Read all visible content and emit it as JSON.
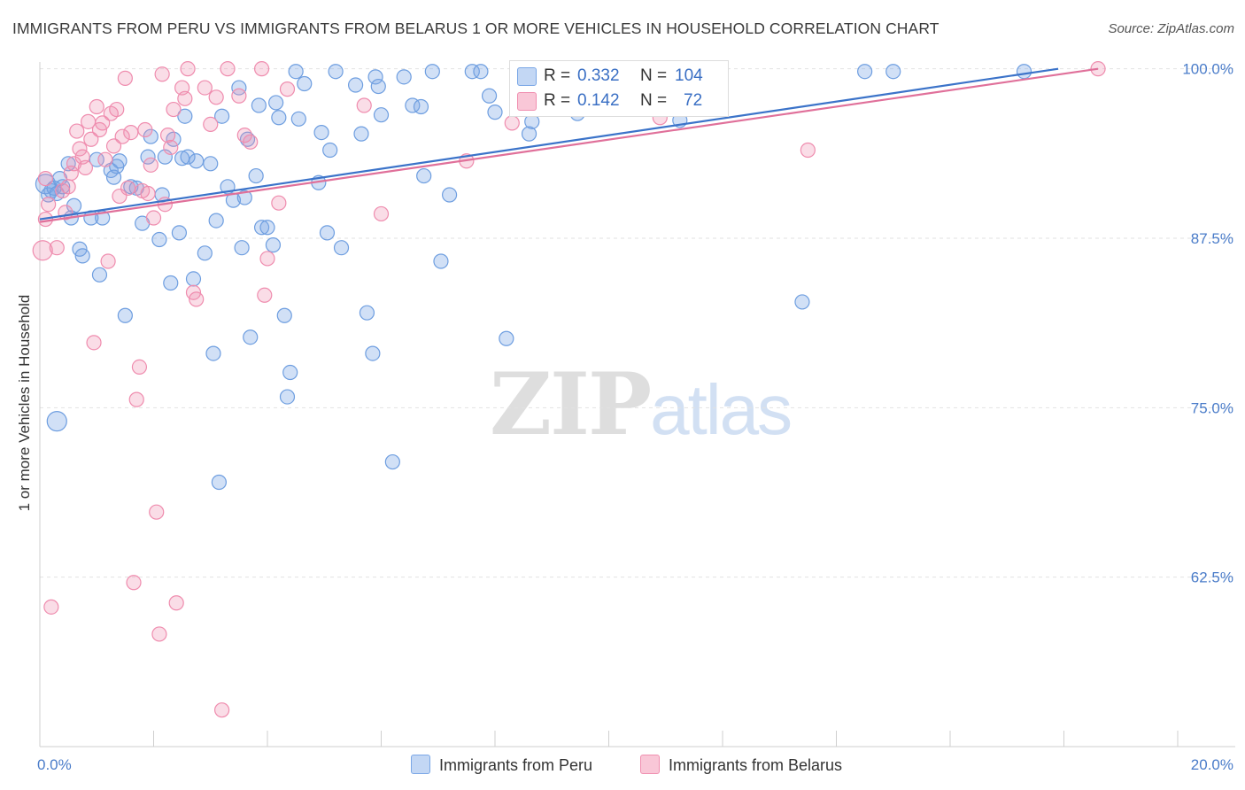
{
  "header": {
    "title": "IMMIGRANTS FROM PERU VS IMMIGRANTS FROM BELARUS 1 OR MORE VEHICLES IN HOUSEHOLD CORRELATION CHART",
    "source": "Source: ZipAtlas.com"
  },
  "watermark": {
    "zip": "ZIP",
    "atlas": "atlas"
  },
  "legend": {
    "peru": {
      "r_label": "R =",
      "r_value": "0.332",
      "n_label": "N =",
      "n_value": "104",
      "color": "#7aa7e6"
    },
    "belarus": {
      "r_label": "R =",
      "r_value": "0.142",
      "n_label": "N =",
      "n_value": "72",
      "color": "#f08fb0"
    }
  },
  "bottom_legend": {
    "peru": "Immigrants from Peru",
    "belarus": "Immigrants from Belarus"
  },
  "chart_data": {
    "type": "scatter",
    "title": "IMMIGRANTS FROM PERU VS IMMIGRANTS FROM BELARUS 1 OR MORE VEHICLES IN HOUSEHOLD CORRELATION CHART",
    "xlabel": "",
    "ylabel": "1 or more Vehicles in Household",
    "xlim": [
      0,
      20
    ],
    "ylim": [
      50,
      100.5
    ],
    "x_tick_labels": [
      "0.0%",
      "20.0%"
    ],
    "y_ticks": [
      62.5,
      75.0,
      87.5,
      100.0
    ],
    "y_tick_labels": [
      "62.5%",
      "75.0%",
      "87.5%",
      "100.0%"
    ],
    "grid": true,
    "legend_position": "top-center",
    "series": [
      {
        "name": "Immigrants from Peru",
        "color": "#7aa7e6",
        "trend": [
          [
            0,
            88.9
          ],
          [
            17.9,
            100
          ]
        ],
        "points": [
          [
            0.1,
            91.5
          ],
          [
            0.15,
            90.7
          ],
          [
            0.2,
            91.0
          ],
          [
            0.25,
            91.2
          ],
          [
            0.3,
            90.8
          ],
          [
            0.35,
            91.9
          ],
          [
            0.4,
            91.3
          ],
          [
            0.5,
            93.0
          ],
          [
            0.55,
            89.0
          ],
          [
            0.6,
            89.9
          ],
          [
            0.7,
            86.7
          ],
          [
            0.75,
            86.2
          ],
          [
            0.9,
            89.0
          ],
          [
            1.0,
            93.3
          ],
          [
            1.05,
            84.8
          ],
          [
            1.1,
            89.0
          ],
          [
            1.25,
            92.5
          ],
          [
            1.3,
            92.0
          ],
          [
            1.35,
            92.8
          ],
          [
            1.4,
            93.2
          ],
          [
            1.5,
            81.8
          ],
          [
            1.6,
            91.3
          ],
          [
            1.7,
            91.2
          ],
          [
            1.8,
            88.6
          ],
          [
            1.9,
            93.5
          ],
          [
            1.95,
            95.0
          ],
          [
            2.1,
            87.4
          ],
          [
            2.15,
            90.7
          ],
          [
            2.2,
            93.5
          ],
          [
            2.3,
            84.2
          ],
          [
            2.35,
            94.8
          ],
          [
            2.45,
            87.9
          ],
          [
            2.5,
            93.4
          ],
          [
            2.55,
            96.5
          ],
          [
            2.6,
            93.5
          ],
          [
            2.7,
            84.5
          ],
          [
            2.75,
            93.2
          ],
          [
            2.9,
            86.4
          ],
          [
            3.0,
            93.0
          ],
          [
            3.05,
            79.0
          ],
          [
            3.1,
            88.8
          ],
          [
            3.15,
            69.5
          ],
          [
            3.2,
            96.5
          ],
          [
            3.3,
            91.3
          ],
          [
            3.4,
            90.3
          ],
          [
            3.5,
            98.6
          ],
          [
            3.55,
            86.8
          ],
          [
            3.6,
            90.5
          ],
          [
            3.65,
            94.8
          ],
          [
            3.7,
            80.2
          ],
          [
            3.8,
            92.1
          ],
          [
            3.85,
            97.3
          ],
          [
            3.9,
            88.3
          ],
          [
            4.0,
            88.3
          ],
          [
            4.1,
            87.0
          ],
          [
            4.15,
            97.5
          ],
          [
            4.2,
            96.4
          ],
          [
            4.3,
            81.8
          ],
          [
            4.35,
            75.8
          ],
          [
            4.4,
            77.6
          ],
          [
            4.5,
            99.8
          ],
          [
            4.55,
            96.3
          ],
          [
            4.65,
            98.9
          ],
          [
            4.9,
            91.6
          ],
          [
            4.95,
            95.3
          ],
          [
            5.05,
            87.9
          ],
          [
            5.1,
            94.0
          ],
          [
            5.2,
            99.8
          ],
          [
            5.3,
            86.8
          ],
          [
            5.55,
            98.8
          ],
          [
            5.65,
            95.2
          ],
          [
            5.75,
            82.0
          ],
          [
            5.85,
            79.0
          ],
          [
            5.9,
            99.4
          ],
          [
            5.95,
            98.7
          ],
          [
            6.0,
            96.6
          ],
          [
            6.2,
            71.0
          ],
          [
            6.4,
            99.4
          ],
          [
            6.55,
            97.3
          ],
          [
            6.7,
            97.2
          ],
          [
            6.75,
            92.1
          ],
          [
            6.9,
            99.8
          ],
          [
            7.05,
            85.8
          ],
          [
            7.2,
            90.7
          ],
          [
            7.6,
            99.8
          ],
          [
            7.75,
            99.8
          ],
          [
            7.9,
            98.0
          ],
          [
            8.0,
            96.8
          ],
          [
            8.2,
            80.1
          ],
          [
            8.6,
            95.2
          ],
          [
            8.65,
            96.1
          ],
          [
            8.85,
            99.8
          ],
          [
            9.0,
            99.8
          ],
          [
            9.45,
            96.7
          ],
          [
            9.85,
            99.8
          ],
          [
            10.3,
            99.8
          ],
          [
            11.25,
            96.2
          ],
          [
            13.4,
            82.8
          ],
          [
            14.5,
            99.8
          ],
          [
            15.0,
            99.8
          ],
          [
            17.3,
            99.8
          ],
          [
            0.3,
            74.0
          ]
        ]
      },
      {
        "name": "Immigrants from Belarus",
        "color": "#f08fb0",
        "trend": [
          [
            0,
            88.7
          ],
          [
            18.6,
            100
          ]
        ],
        "points": [
          [
            0.05,
            86.6
          ],
          [
            0.1,
            88.9
          ],
          [
            0.15,
            90.0
          ],
          [
            0.2,
            60.3
          ],
          [
            0.3,
            86.8
          ],
          [
            0.4,
            91.0
          ],
          [
            0.45,
            89.4
          ],
          [
            0.5,
            91.3
          ],
          [
            0.55,
            92.3
          ],
          [
            0.6,
            93.0
          ],
          [
            0.65,
            95.4
          ],
          [
            0.7,
            94.1
          ],
          [
            0.75,
            93.5
          ],
          [
            0.8,
            92.7
          ],
          [
            0.85,
            96.1
          ],
          [
            0.9,
            94.8
          ],
          [
            0.95,
            79.8
          ],
          [
            1.0,
            97.2
          ],
          [
            1.05,
            95.5
          ],
          [
            1.1,
            96.0
          ],
          [
            1.15,
            93.3
          ],
          [
            1.2,
            85.8
          ],
          [
            1.25,
            96.7
          ],
          [
            1.3,
            94.3
          ],
          [
            1.35,
            97.0
          ],
          [
            1.4,
            90.6
          ],
          [
            1.45,
            95.0
          ],
          [
            1.5,
            99.3
          ],
          [
            1.55,
            91.2
          ],
          [
            1.6,
            95.3
          ],
          [
            1.65,
            62.1
          ],
          [
            1.7,
            75.6
          ],
          [
            1.75,
            78.0
          ],
          [
            1.8,
            91.0
          ],
          [
            1.85,
            95.5
          ],
          [
            1.9,
            90.8
          ],
          [
            1.95,
            92.9
          ],
          [
            2.0,
            89.0
          ],
          [
            2.05,
            67.3
          ],
          [
            2.1,
            58.3
          ],
          [
            2.15,
            99.6
          ],
          [
            2.2,
            90.0
          ],
          [
            2.25,
            95.1
          ],
          [
            2.3,
            94.2
          ],
          [
            2.35,
            97.0
          ],
          [
            2.4,
            60.6
          ],
          [
            2.5,
            98.6
          ],
          [
            2.55,
            97.8
          ],
          [
            2.6,
            100.0
          ],
          [
            2.7,
            83.5
          ],
          [
            2.75,
            83.0
          ],
          [
            2.9,
            98.6
          ],
          [
            3.0,
            95.9
          ],
          [
            3.1,
            97.9
          ],
          [
            3.2,
            52.7
          ],
          [
            3.3,
            100.0
          ],
          [
            3.5,
            98.0
          ],
          [
            3.6,
            95.1
          ],
          [
            3.7,
            94.6
          ],
          [
            3.9,
            100.0
          ],
          [
            3.95,
            83.3
          ],
          [
            4.0,
            86.0
          ],
          [
            4.2,
            90.1
          ],
          [
            4.35,
            98.5
          ],
          [
            5.7,
            97.3
          ],
          [
            6.0,
            89.3
          ],
          [
            7.5,
            93.2
          ],
          [
            8.3,
            96.0
          ],
          [
            10.9,
            96.4
          ],
          [
            13.5,
            94.0
          ],
          [
            18.6,
            100.0
          ],
          [
            0.1,
            91.9
          ]
        ]
      }
    ]
  }
}
